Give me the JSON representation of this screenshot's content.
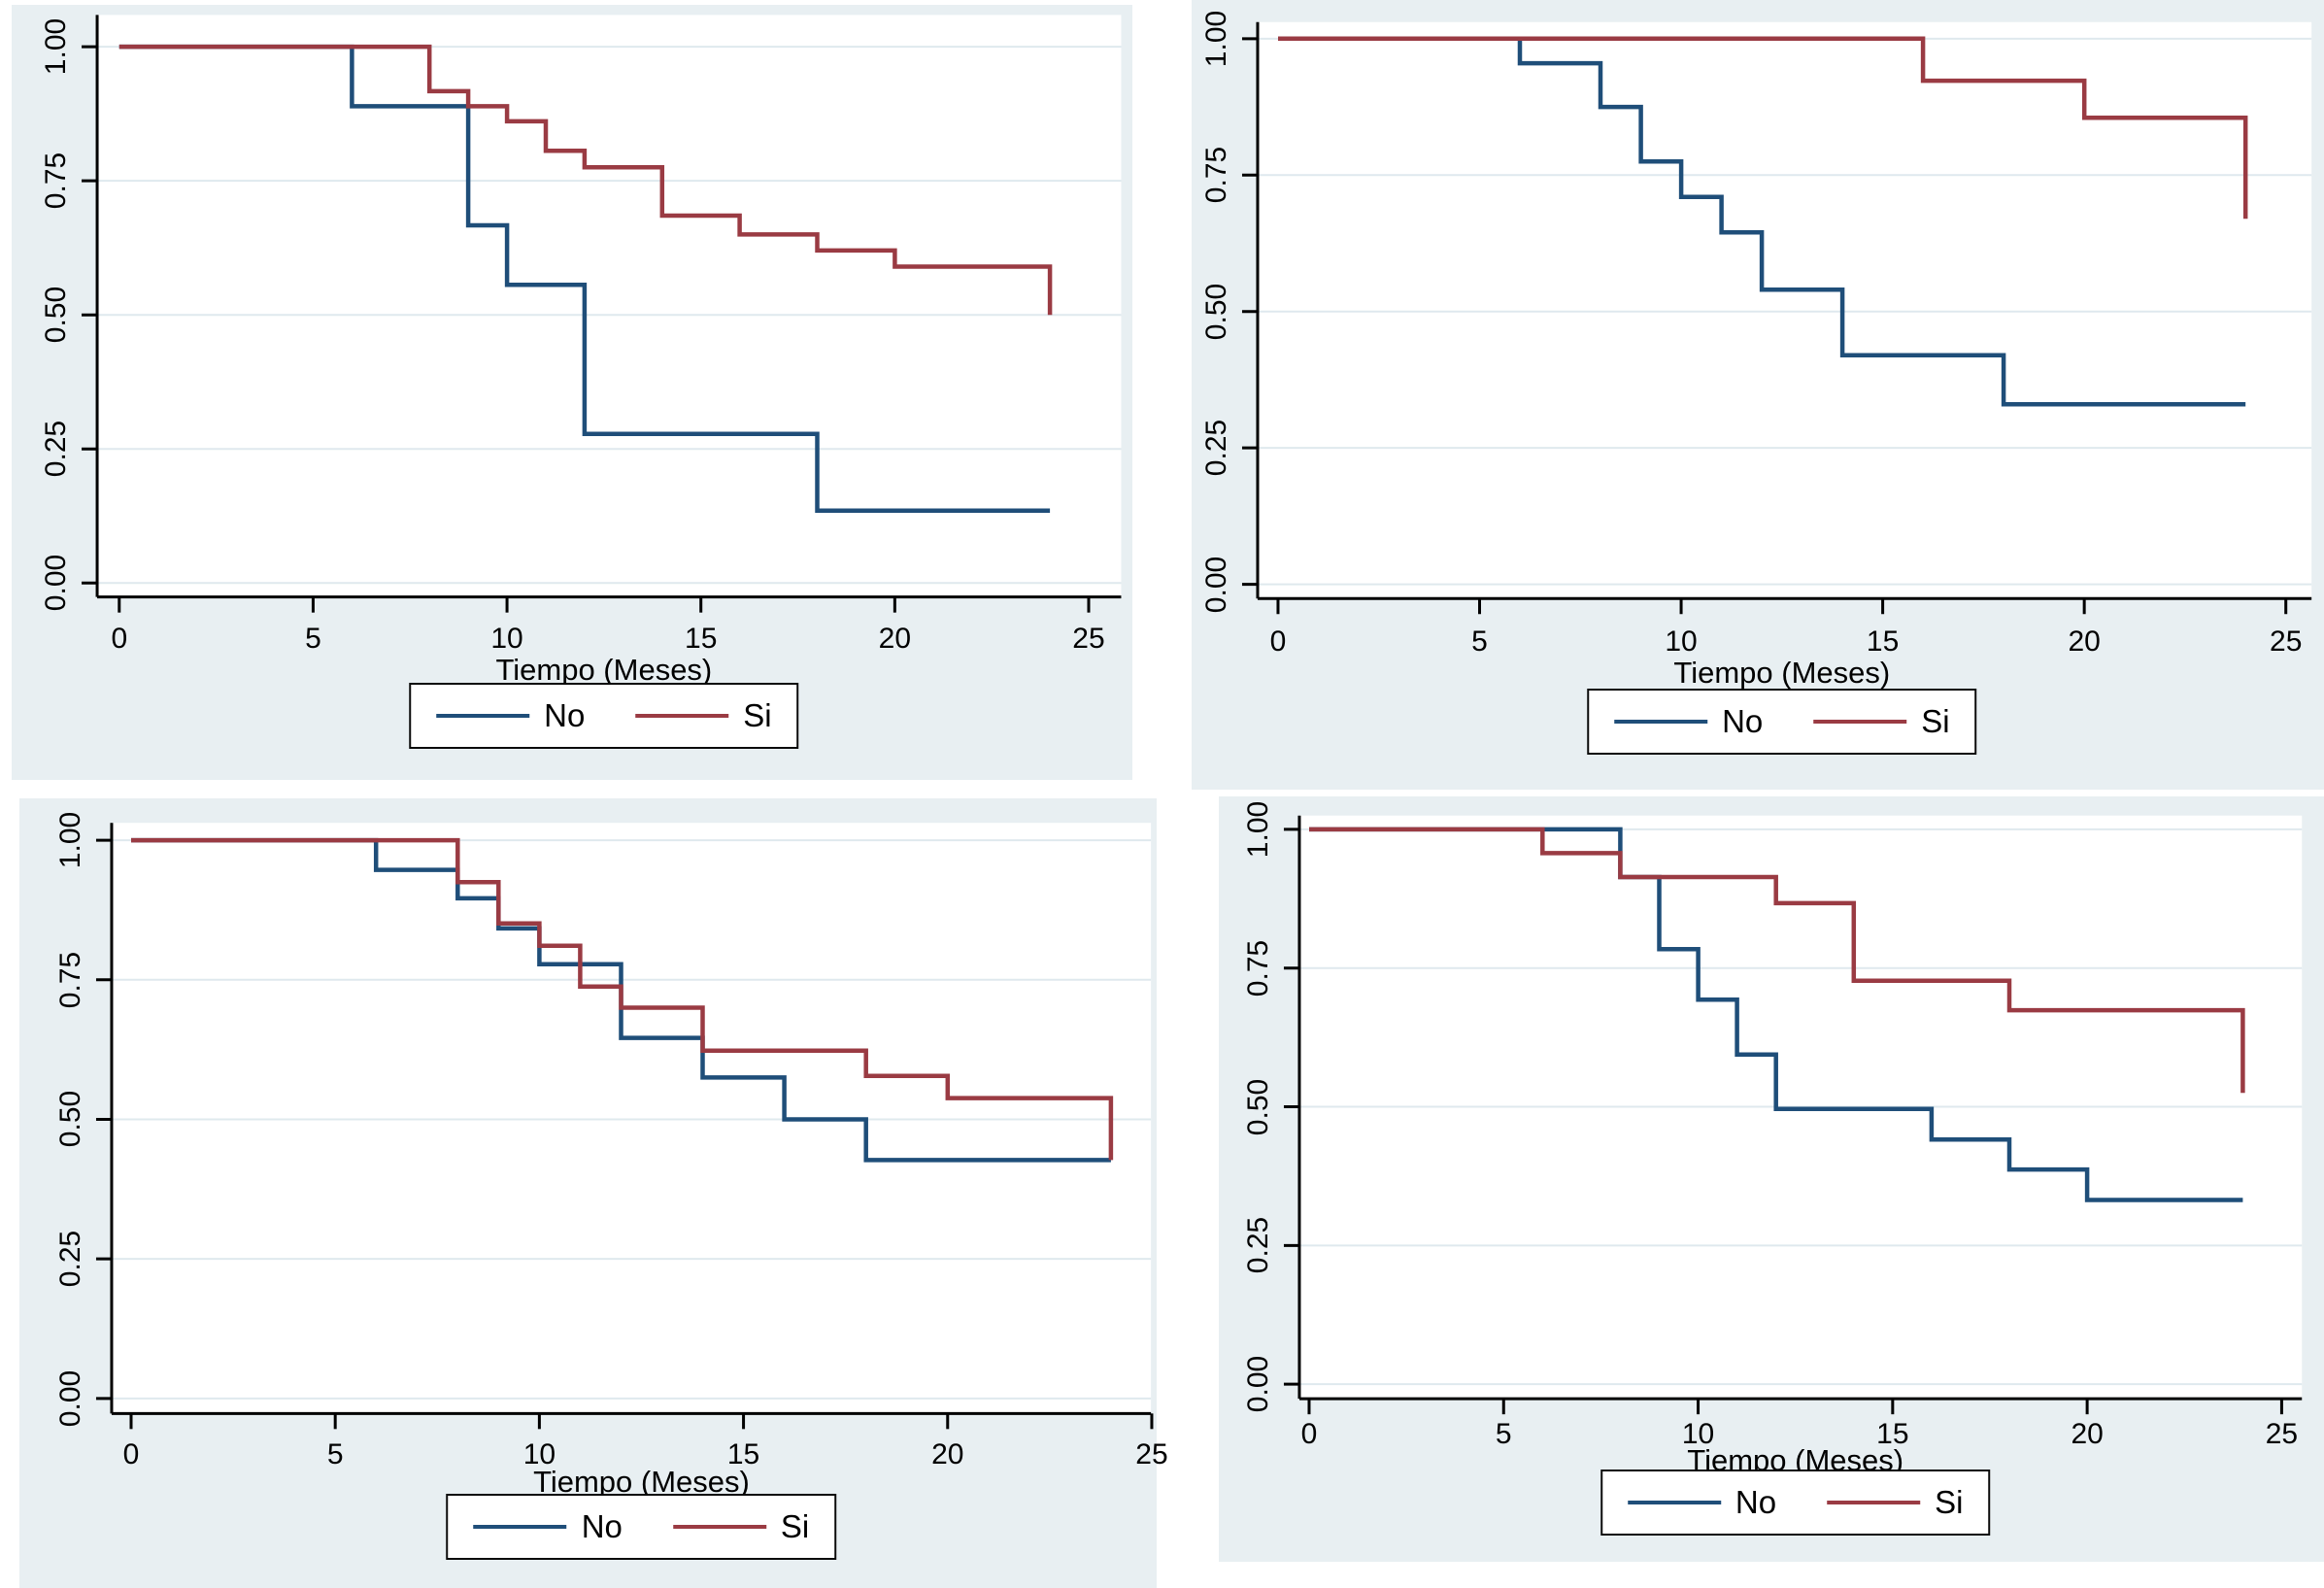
{
  "figure": {
    "kind": "kaplan-meier-survival-grid",
    "rows": 2,
    "cols": 2
  },
  "colors": {
    "page_bg": "#ffffff",
    "panel_bg": "#e8eff2",
    "plot_bg": "#ffffff",
    "grid": "#dfe9ee",
    "axis": "#000000",
    "text": "#000000",
    "no_line": "#1f4e79",
    "si_line": "#9a3b43",
    "legend_border": "#0a0a0a",
    "legend_bg": "#ffffff"
  },
  "legend": {
    "no_label": "No",
    "si_label": "Si"
  },
  "chart_data": [
    {
      "type": "line",
      "subtype": "kaplan-meier-step",
      "position": "top-left",
      "title": "",
      "xlabel": "Tiempo (Meses)",
      "ylabel": "",
      "xlim": [
        0,
        25
      ],
      "ylim": [
        0.0,
        1.0
      ],
      "grid": true,
      "legend_position": "bottom-center",
      "x_ticks": [
        "0",
        "5",
        "10",
        "15",
        "20",
        "25"
      ],
      "x_tick_values": [
        0,
        5,
        10,
        15,
        20,
        25
      ],
      "y_ticks": [
        "0.00",
        "0.25",
        "0.50",
        "0.75",
        "1.00"
      ],
      "y_tick_values": [
        0,
        0.25,
        0.5,
        0.75,
        1.0
      ],
      "series": [
        {
          "name": "No",
          "color_key": "no_line",
          "steps": [
            [
              0,
              1.0
            ],
            [
              6,
              0.889
            ],
            [
              9,
              0.667
            ],
            [
              10,
              0.556
            ],
            [
              12,
              0.278
            ],
            [
              18,
              0.135
            ],
            [
              24,
              0.135
            ]
          ]
        },
        {
          "name": "Si",
          "color_key": "si_line",
          "steps": [
            [
              0,
              1.0
            ],
            [
              8,
              0.917
            ],
            [
              9,
              0.889
            ],
            [
              10,
              0.861
            ],
            [
              11,
              0.806
            ],
            [
              12,
              0.775
            ],
            [
              14,
              0.685
            ],
            [
              16,
              0.65
            ],
            [
              18,
              0.62
            ],
            [
              20,
              0.59
            ],
            [
              24,
              0.5
            ]
          ]
        }
      ]
    },
    {
      "type": "line",
      "subtype": "kaplan-meier-step",
      "position": "top-right",
      "title": "",
      "xlabel": "Tiempo (Meses)",
      "ylabel": "",
      "xlim": [
        0,
        25
      ],
      "ylim": [
        0.0,
        1.0
      ],
      "grid": true,
      "legend_position": "bottom-center",
      "x_ticks": [
        "0",
        "5",
        "10",
        "15",
        "20",
        "25"
      ],
      "x_tick_values": [
        0,
        5,
        10,
        15,
        20,
        25
      ],
      "y_ticks": [
        "0.00",
        "0.25",
        "0.50",
        "0.75",
        "1.00"
      ],
      "y_tick_values": [
        0,
        0.25,
        0.5,
        0.75,
        1.0
      ],
      "series": [
        {
          "name": "No",
          "color_key": "no_line",
          "steps": [
            [
              0,
              1.0
            ],
            [
              6,
              0.955
            ],
            [
              8,
              0.875
            ],
            [
              9,
              0.775
            ],
            [
              10,
              0.71
            ],
            [
              11,
              0.645
            ],
            [
              12,
              0.54
            ],
            [
              14,
              0.42
            ],
            [
              18,
              0.33
            ],
            [
              24,
              0.33
            ]
          ]
        },
        {
          "name": "Si",
          "color_key": "si_line",
          "steps": [
            [
              0,
              1.0
            ],
            [
              16,
              0.923
            ],
            [
              20,
              0.855
            ],
            [
              24,
              0.67
            ]
          ]
        }
      ]
    },
    {
      "type": "line",
      "subtype": "kaplan-meier-step",
      "position": "bottom-left",
      "title": "",
      "xlabel": "Tiempo (Meses)",
      "ylabel": "",
      "xlim": [
        0,
        25
      ],
      "ylim": [
        0.0,
        1.0
      ],
      "grid": true,
      "legend_position": "bottom-center",
      "x_ticks": [
        "0",
        "5",
        "10",
        "15",
        "20",
        "25"
      ],
      "x_tick_values": [
        0,
        5,
        10,
        15,
        20,
        25
      ],
      "y_ticks": [
        "0.00",
        "0.25",
        "0.50",
        "0.75",
        "1.00"
      ],
      "y_tick_values": [
        0,
        0.25,
        0.5,
        0.75,
        1.0
      ],
      "series": [
        {
          "name": "No",
          "color_key": "no_line",
          "steps": [
            [
              0,
              1.0
            ],
            [
              6,
              0.947
            ],
            [
              8,
              0.896
            ],
            [
              9,
              0.842
            ],
            [
              10,
              0.778
            ],
            [
              12,
              0.646
            ],
            [
              14,
              0.575
            ],
            [
              16,
              0.5
            ],
            [
              18,
              0.427
            ],
            [
              24,
              0.427
            ]
          ]
        },
        {
          "name": "Si",
          "color_key": "si_line",
          "steps": [
            [
              0,
              1.0
            ],
            [
              8,
              0.925
            ],
            [
              9,
              0.851
            ],
            [
              10,
              0.811
            ],
            [
              11,
              0.738
            ],
            [
              12,
              0.7
            ],
            [
              14,
              0.623
            ],
            [
              18,
              0.578
            ],
            [
              20,
              0.538
            ],
            [
              24,
              0.427
            ]
          ]
        }
      ]
    },
    {
      "type": "line",
      "subtype": "kaplan-meier-step",
      "position": "bottom-right",
      "title": "",
      "xlabel": "Tiempo (Meses)",
      "ylabel": "",
      "xlim": [
        0,
        25
      ],
      "ylim": [
        0.0,
        1.0
      ],
      "grid": true,
      "legend_position": "bottom-center",
      "x_ticks": [
        "0",
        "5",
        "10",
        "15",
        "20",
        "25"
      ],
      "x_tick_values": [
        0,
        5,
        10,
        15,
        20,
        25
      ],
      "y_ticks": [
        "0.00",
        "0.25",
        "0.50",
        "0.75",
        "1.00"
      ],
      "y_tick_values": [
        0,
        0.25,
        0.5,
        0.75,
        1.0
      ],
      "series": [
        {
          "name": "No",
          "color_key": "no_line",
          "steps": [
            [
              0,
              1.0
            ],
            [
              8,
              0.914
            ],
            [
              9,
              0.784
            ],
            [
              10,
              0.693
            ],
            [
              11,
              0.594
            ],
            [
              12,
              0.496
            ],
            [
              16,
              0.441
            ],
            [
              18,
              0.387
            ],
            [
              20,
              0.332
            ],
            [
              24,
              0.332
            ]
          ]
        },
        {
          "name": "Si",
          "color_key": "si_line",
          "steps": [
            [
              0,
              1.0
            ],
            [
              6,
              0.957
            ],
            [
              8,
              0.914
            ],
            [
              12,
              0.867
            ],
            [
              14,
              0.727
            ],
            [
              18,
              0.674
            ],
            [
              24,
              0.525
            ]
          ]
        }
      ]
    }
  ]
}
